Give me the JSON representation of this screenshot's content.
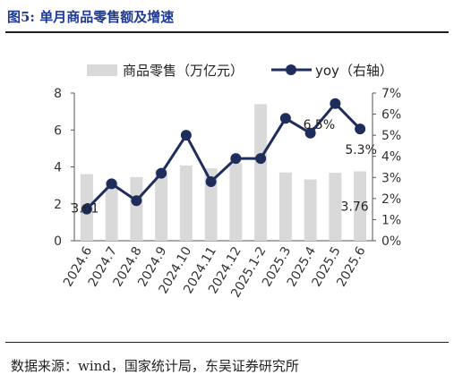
{
  "header": {
    "title": "图5:  单月商品零售额及增速"
  },
  "footer": {
    "source": "数据来源：wind，国家统计局，东吴证券研究所"
  },
  "colors": {
    "bar": "#d9d9d9",
    "line": "#1f2d5c",
    "title": "#1f3a93"
  },
  "chart_data": {
    "type": "bar",
    "categories": [
      "2024.6",
      "2024.7",
      "2024.8",
      "2024.9",
      "2024.10",
      "2024.11",
      "2024.12",
      "2025.1-2",
      "2025.3",
      "2025.4",
      "2025.5",
      "2025.6"
    ],
    "series": [
      {
        "name": "商品零售（万亿元）",
        "type": "bar",
        "axis": "left",
        "values": [
          3.61,
          3.2,
          3.45,
          3.85,
          4.08,
          3.92,
          4.2,
          7.4,
          3.7,
          3.32,
          3.68,
          3.76
        ]
      },
      {
        "name": "yoy（右轴）",
        "type": "line",
        "axis": "right",
        "values": [
          1.5,
          2.7,
          1.9,
          3.2,
          5.0,
          2.8,
          3.9,
          3.9,
          5.8,
          5.1,
          6.5,
          5.3
        ]
      }
    ],
    "data_labels": {
      "bar_first": "3.61",
      "bar_last": "3.76",
      "line_peak": "6.5%",
      "line_last": "5.3%"
    },
    "left_axis": {
      "ylim": [
        0,
        8
      ],
      "ticks": [
        "0",
        "2",
        "4",
        "6",
        "8"
      ]
    },
    "right_axis": {
      "ylim": [
        0,
        7
      ],
      "ticks": [
        "0%",
        "1%",
        "2%",
        "3%",
        "4%",
        "5%",
        "6%",
        "7%"
      ]
    },
    "legend": {
      "position": "top"
    },
    "grid": false
  }
}
